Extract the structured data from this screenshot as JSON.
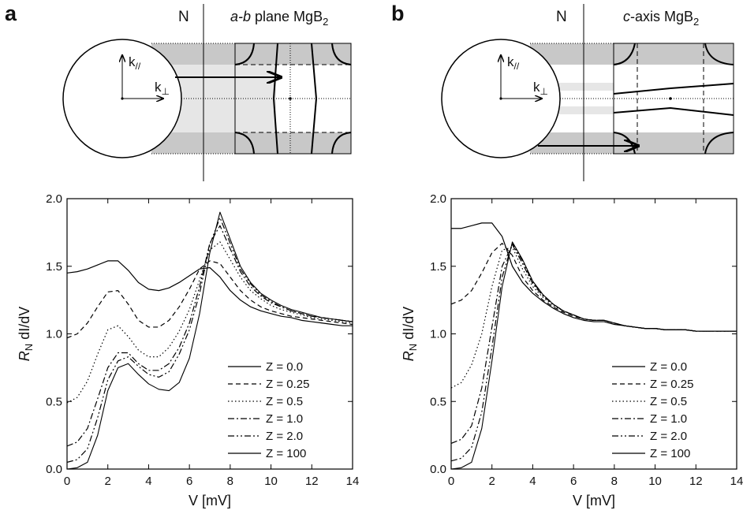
{
  "chart_data": [
    {
      "type": "line",
      "panel_label": "a",
      "diagram": {
        "n_label": "N",
        "plane_label": {
          "italic": "a-b",
          "text": " plane MgB",
          "sub": "2"
        },
        "k_par": {
          "text": "k",
          "sub": "//"
        },
        "k_perp": {
          "text": "k",
          "sub": "⊥"
        }
      },
      "x_label": "V [mV]",
      "y_label": {
        "main": "R",
        "sub": "N",
        "rest": " dI/dV"
      },
      "x": [
        0,
        0.5,
        1,
        1.5,
        2,
        2.5,
        3,
        3.5,
        4,
        4.5,
        5,
        5.5,
        6,
        6.5,
        7,
        7.5,
        8,
        8.5,
        9,
        9.5,
        10,
        10.5,
        11,
        11.5,
        12,
        12.5,
        13,
        13.5,
        14
      ],
      "series": [
        {
          "name": "Z = 0.0",
          "color": "#000000",
          "dash": "solid",
          "values": [
            1.45,
            1.46,
            1.48,
            1.51,
            1.54,
            1.54,
            1.47,
            1.38,
            1.33,
            1.32,
            1.34,
            1.38,
            1.43,
            1.48,
            1.49,
            1.42,
            1.32,
            1.25,
            1.2,
            1.17,
            1.15,
            1.13,
            1.12,
            1.1,
            1.09,
            1.08,
            1.07,
            1.06,
            1.06
          ]
        },
        {
          "name": "Z = 0.25",
          "color": "#000000",
          "dash": "dash",
          "values": [
            0.97,
            1.0,
            1.08,
            1.2,
            1.31,
            1.32,
            1.22,
            1.1,
            1.05,
            1.05,
            1.1,
            1.2,
            1.33,
            1.48,
            1.54,
            1.52,
            1.42,
            1.32,
            1.25,
            1.2,
            1.17,
            1.15,
            1.13,
            1.12,
            1.11,
            1.1,
            1.09,
            1.08,
            1.07
          ]
        },
        {
          "name": "Z = 0.5",
          "color": "#000000",
          "dash": "dot",
          "values": [
            0.49,
            0.53,
            0.65,
            0.85,
            1.03,
            1.06,
            0.98,
            0.88,
            0.83,
            0.83,
            0.9,
            1.02,
            1.18,
            1.4,
            1.62,
            1.68,
            1.55,
            1.42,
            1.32,
            1.26,
            1.21,
            1.18,
            1.16,
            1.14,
            1.12,
            1.11,
            1.1,
            1.09,
            1.08
          ]
        },
        {
          "name": "Z = 1.0",
          "color": "#000000",
          "dash": "dashdot",
          "values": [
            0.17,
            0.2,
            0.3,
            0.52,
            0.75,
            0.86,
            0.86,
            0.78,
            0.73,
            0.73,
            0.78,
            0.9,
            1.08,
            1.35,
            1.67,
            1.8,
            1.63,
            1.46,
            1.35,
            1.28,
            1.23,
            1.2,
            1.17,
            1.15,
            1.13,
            1.12,
            1.11,
            1.1,
            1.09
          ]
        },
        {
          "name": "Z = 2.0",
          "color": "#000000",
          "dash": "dashdotdot",
          "values": [
            0.05,
            0.07,
            0.15,
            0.38,
            0.66,
            0.8,
            0.83,
            0.76,
            0.7,
            0.68,
            0.72,
            0.85,
            1.03,
            1.3,
            1.66,
            1.86,
            1.67,
            1.48,
            1.37,
            1.29,
            1.24,
            1.2,
            1.17,
            1.15,
            1.13,
            1.12,
            1.11,
            1.1,
            1.09
          ]
        },
        {
          "name": "Z = 100",
          "color": "#000000",
          "dash": "solid",
          "values": [
            0,
            0.01,
            0.05,
            0.25,
            0.58,
            0.75,
            0.78,
            0.7,
            0.63,
            0.59,
            0.58,
            0.64,
            0.82,
            1.15,
            1.6,
            1.9,
            1.7,
            1.5,
            1.38,
            1.3,
            1.25,
            1.21,
            1.18,
            1.16,
            1.14,
            1.12,
            1.11,
            1.1,
            1.09
          ]
        }
      ],
      "xlim": [
        0,
        14
      ],
      "xticks": [
        0,
        2,
        4,
        6,
        8,
        10,
        12,
        14
      ],
      "ylim": [
        0,
        2
      ],
      "yticks": [
        {
          "value": 0,
          "label": "0.0"
        },
        {
          "value": 0.5,
          "label": "0.5"
        },
        {
          "value": 1,
          "label": "1.0"
        },
        {
          "value": 1.5,
          "label": "1.5"
        },
        {
          "value": 2,
          "label": "2.0"
        }
      ],
      "legend": "lower right"
    },
    {
      "type": "line",
      "panel_label": "b",
      "diagram": {
        "n_label": "N",
        "plane_label": {
          "italic": "c",
          "text": "-axis MgB",
          "sub": "2"
        },
        "k_par": {
          "text": "k",
          "sub": "//"
        },
        "k_perp": {
          "text": "k",
          "sub": "⊥"
        }
      },
      "x_label": "V [mV]",
      "y_label": {
        "main": "R",
        "sub": "N",
        "rest": " dI/dV"
      },
      "x": [
        0,
        0.5,
        1,
        1.5,
        2,
        2.5,
        3,
        3.5,
        4,
        4.5,
        5,
        5.5,
        6,
        6.5,
        7,
        7.5,
        8,
        8.5,
        9,
        9.5,
        10,
        10.5,
        11,
        11.5,
        12,
        12.5,
        13,
        13.5,
        14
      ],
      "series": [
        {
          "name": "Z = 0.0",
          "color": "#000000",
          "dash": "solid",
          "values": [
            1.78,
            1.78,
            1.8,
            1.82,
            1.82,
            1.72,
            1.5,
            1.38,
            1.3,
            1.24,
            1.19,
            1.15,
            1.12,
            1.1,
            1.09,
            1.09,
            1.07,
            1.06,
            1.05,
            1.04,
            1.04,
            1.03,
            1.03,
            1.03,
            1.02,
            1.02,
            1.02,
            1.02,
            1.02
          ]
        },
        {
          "name": "Z = 0.25",
          "color": "#000000",
          "dash": "dash",
          "values": [
            1.22,
            1.25,
            1.32,
            1.45,
            1.6,
            1.67,
            1.58,
            1.42,
            1.32,
            1.25,
            1.2,
            1.16,
            1.13,
            1.11,
            1.1,
            1.1,
            1.08,
            1.06,
            1.05,
            1.04,
            1.04,
            1.03,
            1.03,
            1.03,
            1.02,
            1.02,
            1.02,
            1.02,
            1.02
          ]
        },
        {
          "name": "Z = 0.5",
          "color": "#000000",
          "dash": "dot",
          "values": [
            0.6,
            0.64,
            0.77,
            1.0,
            1.35,
            1.62,
            1.64,
            1.48,
            1.35,
            1.27,
            1.21,
            1.17,
            1.14,
            1.11,
            1.1,
            1.1,
            1.08,
            1.06,
            1.05,
            1.04,
            1.04,
            1.03,
            1.03,
            1.03,
            1.02,
            1.02,
            1.02,
            1.02,
            1.02
          ]
        },
        {
          "name": "Z = 1.0",
          "color": "#000000",
          "dash": "dashdot",
          "values": [
            0.19,
            0.22,
            0.32,
            0.6,
            1.05,
            1.5,
            1.66,
            1.52,
            1.37,
            1.28,
            1.22,
            1.17,
            1.14,
            1.11,
            1.1,
            1.1,
            1.08,
            1.06,
            1.05,
            1.04,
            1.04,
            1.03,
            1.03,
            1.03,
            1.02,
            1.02,
            1.02,
            1.02,
            1.02
          ]
        },
        {
          "name": "Z = 2.0",
          "color": "#000000",
          "dash": "dashdotdot",
          "values": [
            0.06,
            0.08,
            0.16,
            0.42,
            0.9,
            1.42,
            1.67,
            1.54,
            1.38,
            1.29,
            1.22,
            1.17,
            1.14,
            1.11,
            1.1,
            1.1,
            1.08,
            1.06,
            1.05,
            1.04,
            1.04,
            1.03,
            1.03,
            1.03,
            1.02,
            1.02,
            1.02,
            1.02,
            1.02
          ]
        },
        {
          "name": "Z = 100",
          "color": "#000000",
          "dash": "solid",
          "values": [
            0,
            0.01,
            0.05,
            0.3,
            0.8,
            1.35,
            1.68,
            1.55,
            1.39,
            1.29,
            1.22,
            1.17,
            1.14,
            1.11,
            1.1,
            1.1,
            1.08,
            1.06,
            1.05,
            1.04,
            1.04,
            1.03,
            1.03,
            1.03,
            1.02,
            1.02,
            1.02,
            1.02,
            1.02
          ]
        }
      ],
      "xlim": [
        0,
        14
      ],
      "xticks": [
        0,
        2,
        4,
        6,
        8,
        10,
        12,
        14
      ],
      "ylim": [
        0,
        2
      ],
      "yticks": [
        {
          "value": 0,
          "label": "0.0"
        },
        {
          "value": 0.5,
          "label": "0.5"
        },
        {
          "value": 1,
          "label": "1.0"
        },
        {
          "value": 1.5,
          "label": "1.5"
        },
        {
          "value": 2,
          "label": "2.0"
        }
      ],
      "legend": "lower right"
    }
  ]
}
